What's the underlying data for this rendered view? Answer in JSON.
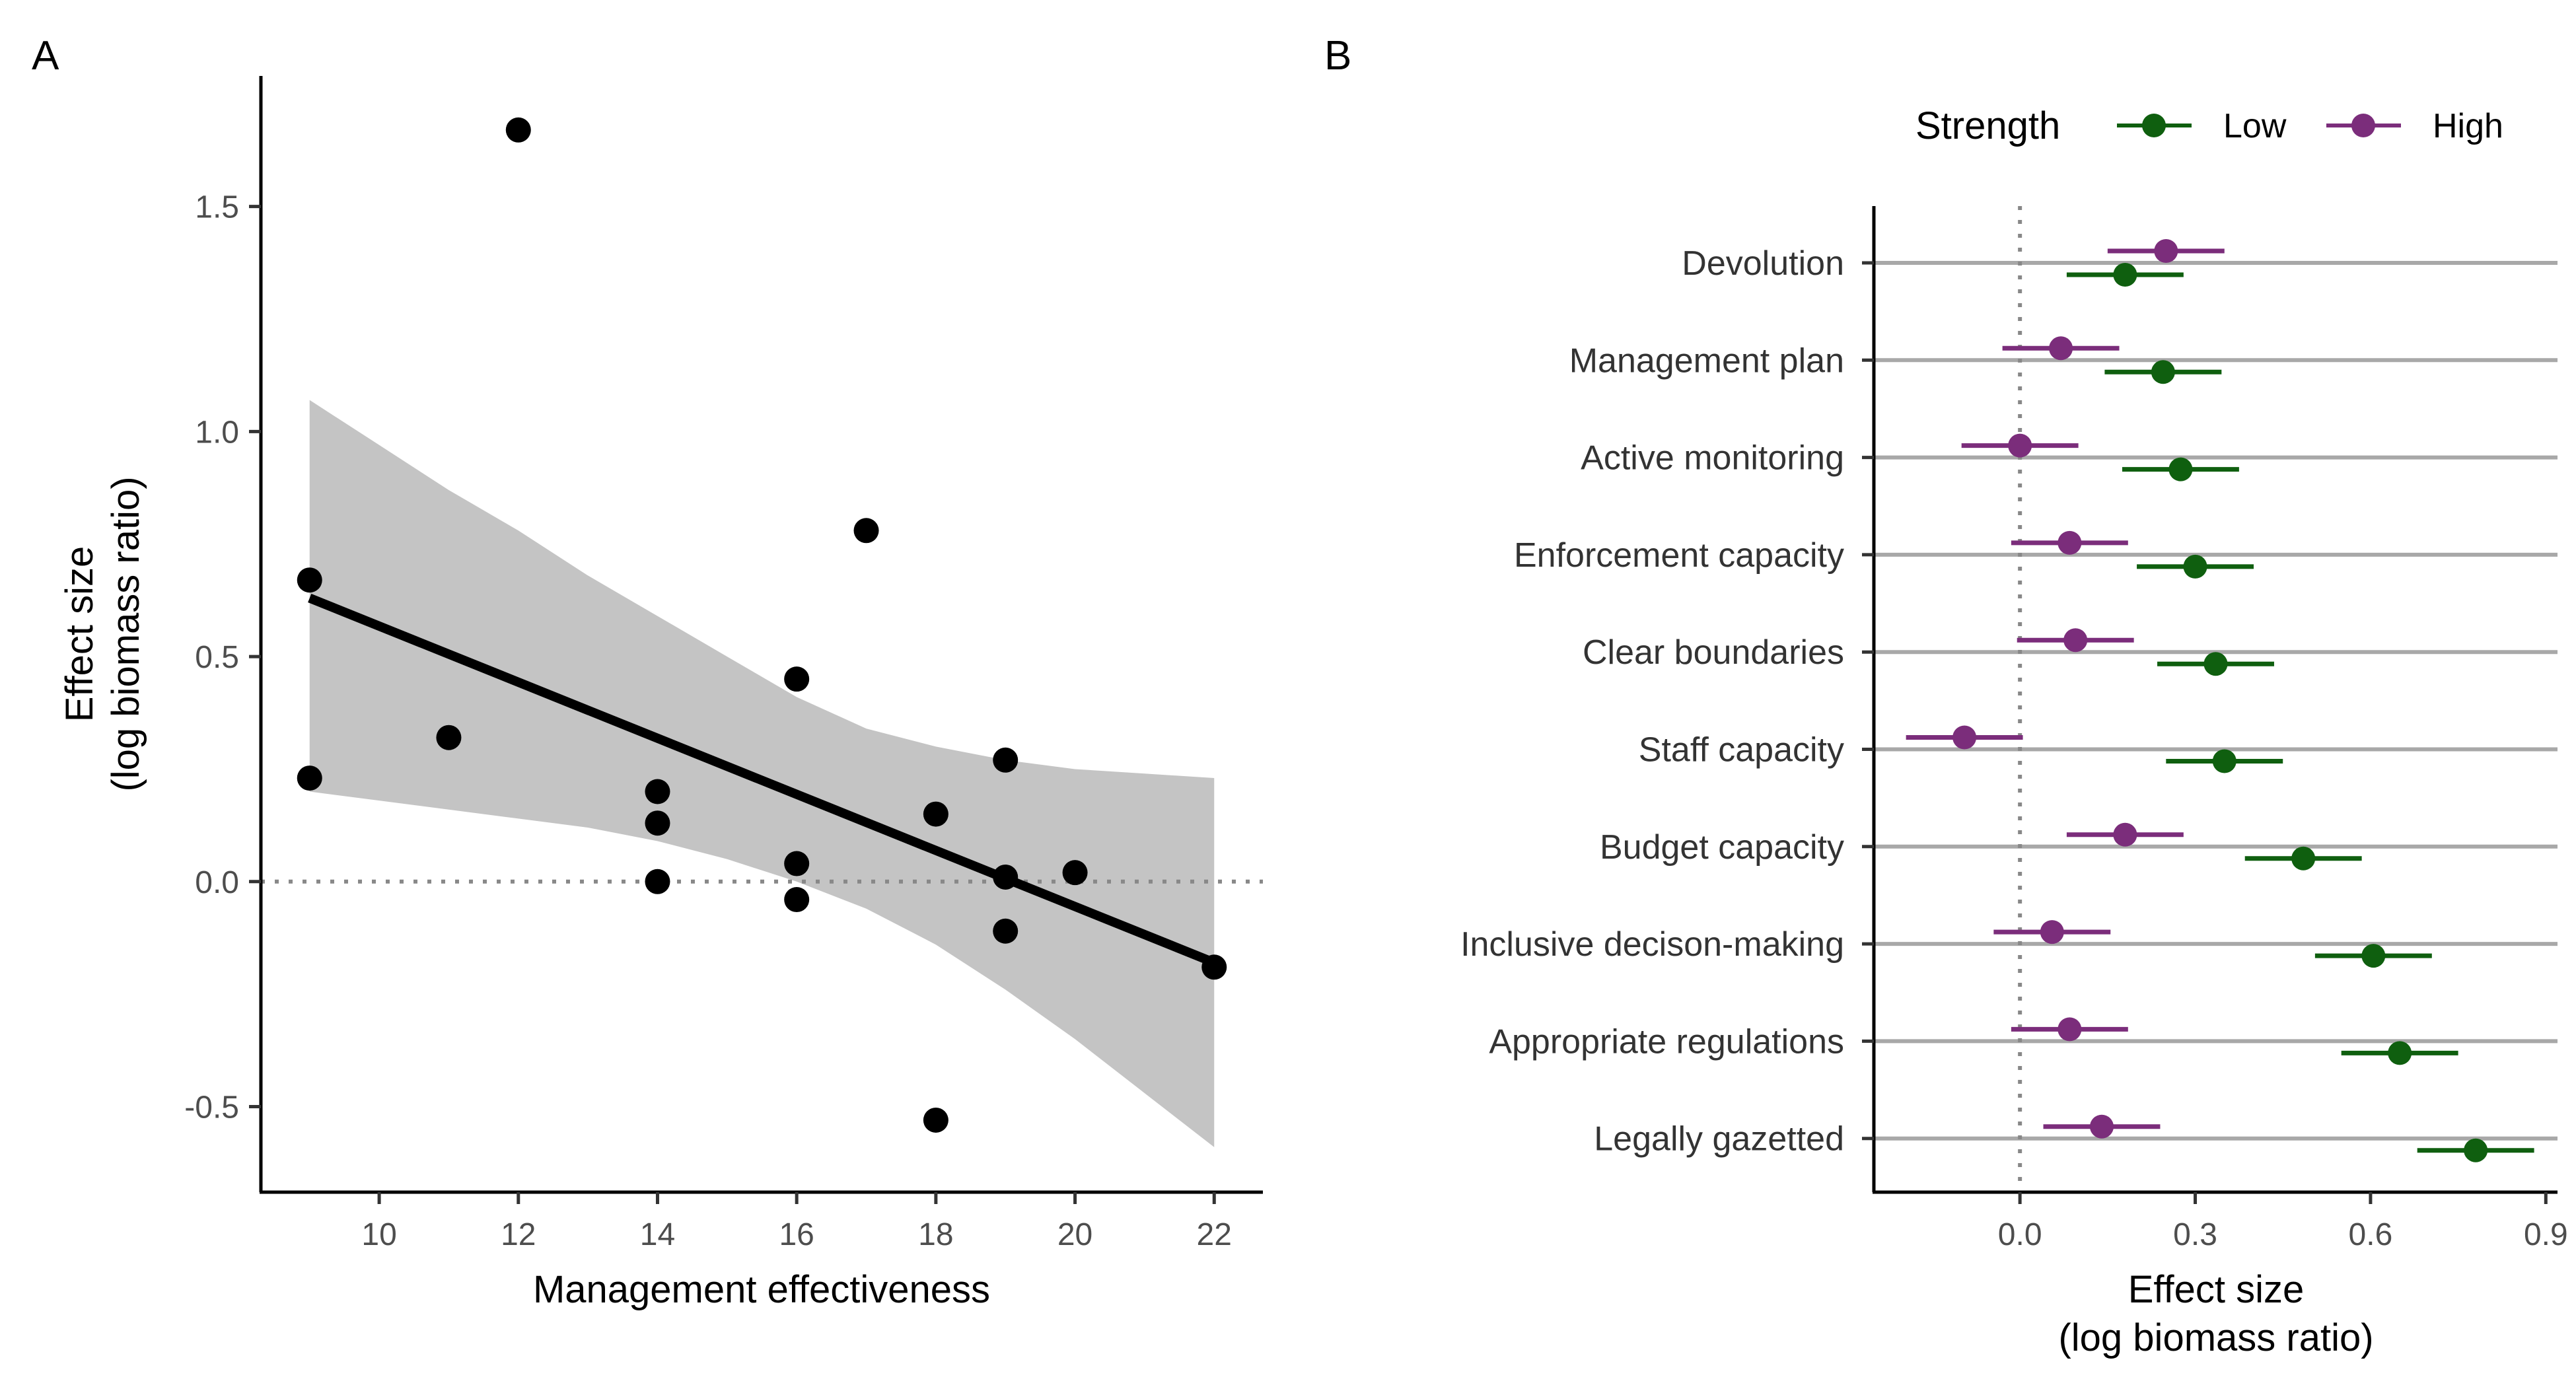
{
  "chart_data": [
    {
      "panel": "A",
      "type": "scatter",
      "xlabel": "Management effectiveness",
      "ylabel": [
        "Effect size",
        "(log biomass ratio)"
      ],
      "xlim": [
        8.3,
        22.7
      ],
      "ylim": [
        -0.69,
        1.79
      ],
      "xticks": [
        10,
        12,
        14,
        16,
        18,
        20,
        22
      ],
      "yticks": [
        -0.5,
        0.0,
        0.5,
        1.0,
        1.5
      ],
      "ytick_labels": [
        "-0.5",
        "0.0",
        "0.5",
        "1.0",
        "1.5"
      ],
      "reference_line_y": 0,
      "points": [
        {
          "x": 9,
          "y": 0.67
        },
        {
          "x": 9,
          "y": 0.23
        },
        {
          "x": 11,
          "y": 0.32
        },
        {
          "x": 12,
          "y": 1.67
        },
        {
          "x": 14,
          "y": 0.2
        },
        {
          "x": 14,
          "y": 0.13
        },
        {
          "x": 14,
          "y": 0.0
        },
        {
          "x": 16,
          "y": 0.45
        },
        {
          "x": 16,
          "y": 0.04
        },
        {
          "x": 16,
          "y": -0.04
        },
        {
          "x": 17,
          "y": 0.78
        },
        {
          "x": 18,
          "y": 0.15
        },
        {
          "x": 18,
          "y": -0.53
        },
        {
          "x": 19,
          "y": 0.27
        },
        {
          "x": 19,
          "y": 0.01
        },
        {
          "x": 19,
          "y": -0.11
        },
        {
          "x": 20,
          "y": 0.02
        },
        {
          "x": 22,
          "y": -0.19
        }
      ],
      "fit": {
        "x": [
          9,
          22
        ],
        "y": [
          0.63,
          -0.18
        ]
      },
      "confidence_band": {
        "x": [
          9,
          10,
          11,
          12,
          13,
          14,
          15,
          16,
          17,
          18,
          19,
          20,
          21,
          22
        ],
        "upper": [
          1.07,
          0.97,
          0.87,
          0.78,
          0.68,
          0.59,
          0.5,
          0.41,
          0.34,
          0.3,
          0.27,
          0.25,
          0.24,
          0.23
        ],
        "lower": [
          0.2,
          0.18,
          0.16,
          0.14,
          0.12,
          0.09,
          0.05,
          0.0,
          -0.06,
          -0.14,
          -0.24,
          -0.35,
          -0.47,
          -0.59
        ]
      },
      "colors": {
        "points": "#000000",
        "fit": "#000000",
        "band": "#c4c4c4",
        "ref": "#888888"
      }
    },
    {
      "panel": "B",
      "type": "scatter",
      "subtype": "dot-and-whisker",
      "xlabel": [
        "Effect size",
        "(log biomass ratio)"
      ],
      "xlim": [
        -0.25,
        0.92
      ],
      "xticks": [
        0.0,
        0.3,
        0.6,
        0.9
      ],
      "xtick_labels": [
        "0.0",
        "0.3",
        "0.6",
        "0.9"
      ],
      "reference_line_x": 0,
      "categories": [
        "Devolution",
        "Management plan",
        "Active monitoring",
        "Enforcement capacity",
        "Clear boundaries",
        "Staff capacity",
        "Budget capacity",
        "Inclusive decison-making",
        "Appropriate regulations",
        "Legally gazetted"
      ],
      "legend": {
        "title": "Strength",
        "position": "top"
      },
      "series": [
        {
          "name": "Low",
          "color": "#0f5f0f",
          "estimates": [
            0.18,
            0.245,
            0.275,
            0.3,
            0.335,
            0.35,
            0.485,
            0.605,
            0.65,
            0.78
          ],
          "lower": [
            0.08,
            0.145,
            0.175,
            0.2,
            0.235,
            0.25,
            0.385,
            0.505,
            0.55,
            0.68
          ],
          "upper": [
            0.28,
            0.345,
            0.375,
            0.4,
            0.435,
            0.45,
            0.585,
            0.705,
            0.75,
            0.88
          ]
        },
        {
          "name": "High",
          "color": "#7b2d7b",
          "estimates": [
            0.25,
            0.07,
            0.0,
            0.085,
            0.095,
            -0.095,
            0.18,
            0.055,
            0.085,
            0.14
          ],
          "lower": [
            0.15,
            -0.03,
            -0.1,
            -0.015,
            -0.005,
            -0.195,
            0.08,
            -0.045,
            -0.015,
            0.04
          ],
          "upper": [
            0.35,
            0.17,
            0.1,
            0.185,
            0.195,
            0.005,
            0.28,
            0.155,
            0.185,
            0.24
          ]
        }
      ],
      "colors": {
        "gridline": "#a8a8a8",
        "ref": "#888888"
      }
    }
  ]
}
